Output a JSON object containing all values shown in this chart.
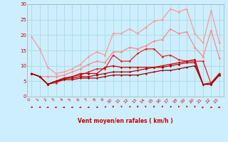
{
  "title": "",
  "xlabel": "Vent moyen/en rafales ( km/h )",
  "xlim": [
    -0.5,
    23.5
  ],
  "ylim": [
    0,
    30
  ],
  "yticks": [
    0,
    5,
    10,
    15,
    20,
    25,
    30
  ],
  "xticks": [
    0,
    1,
    2,
    3,
    4,
    5,
    6,
    7,
    8,
    9,
    10,
    11,
    12,
    13,
    14,
    15,
    16,
    17,
    18,
    19,
    20,
    21,
    22,
    23
  ],
  "bg_color": "#cceeff",
  "grid_color": "#aadddd",
  "lines": [
    {
      "x": [
        0,
        1,
        2,
        3,
        4,
        5,
        6,
        7,
        8,
        9,
        10,
        11,
        12,
        13,
        14,
        15,
        16,
        17,
        18,
        19,
        20,
        21,
        22,
        23
      ],
      "y": [
        19.5,
        15.5,
        9.5,
        7.5,
        8.0,
        9.0,
        10.5,
        13.0,
        14.5,
        13.5,
        20.5,
        20.5,
        22.0,
        20.5,
        22.5,
        24.5,
        25.0,
        28.5,
        27.5,
        28.5,
        20.5,
        17.5,
        28.0,
        17.5
      ],
      "color": "#ff9999",
      "lw": 0.9,
      "marker": "D",
      "ms": 1.8
    },
    {
      "x": [
        0,
        1,
        2,
        3,
        4,
        5,
        6,
        7,
        8,
        9,
        10,
        11,
        12,
        13,
        14,
        15,
        16,
        17,
        18,
        19,
        20,
        21,
        22,
        23
      ],
      "y": [
        7.5,
        6.5,
        6.5,
        6.5,
        7.0,
        8.0,
        9.0,
        10.5,
        11.5,
        11.0,
        14.5,
        14.5,
        16.0,
        15.5,
        16.5,
        18.0,
        18.5,
        22.0,
        20.5,
        21.0,
        16.0,
        13.0,
        21.5,
        12.5
      ],
      "color": "#ff8888",
      "lw": 0.9,
      "marker": "D",
      "ms": 1.8
    },
    {
      "x": [
        0,
        1,
        2,
        3,
        4,
        5,
        6,
        7,
        8,
        9,
        10,
        11,
        12,
        13,
        14,
        15,
        16,
        17,
        18,
        19,
        20,
        21,
        22,
        23
      ],
      "y": [
        7.5,
        6.5,
        4.0,
        4.5,
        5.5,
        6.5,
        7.0,
        8.0,
        9.0,
        9.0,
        13.5,
        11.5,
        11.5,
        14.0,
        15.5,
        15.5,
        13.0,
        13.5,
        12.0,
        11.5,
        11.5,
        11.5,
        4.0,
        7.5
      ],
      "color": "#ee2222",
      "lw": 0.9,
      "marker": "D",
      "ms": 1.8
    },
    {
      "x": [
        0,
        1,
        2,
        3,
        4,
        5,
        6,
        7,
        8,
        9,
        10,
        11,
        12,
        13,
        14,
        15,
        16,
        17,
        18,
        19,
        20,
        21,
        22,
        23
      ],
      "y": [
        7.5,
        6.5,
        4.0,
        5.0,
        6.0,
        6.5,
        7.5,
        7.5,
        7.5,
        9.5,
        10.0,
        9.5,
        9.5,
        9.5,
        9.5,
        9.5,
        10.0,
        10.5,
        11.0,
        11.5,
        12.0,
        4.0,
        4.5,
        7.5
      ],
      "color": "#cc0000",
      "lw": 0.9,
      "marker": "D",
      "ms": 1.8
    },
    {
      "x": [
        0,
        1,
        2,
        3,
        4,
        5,
        6,
        7,
        8,
        9,
        10,
        11,
        12,
        13,
        14,
        15,
        16,
        17,
        18,
        19,
        20,
        21,
        22,
        23
      ],
      "y": [
        7.5,
        6.5,
        4.0,
        5.0,
        6.0,
        6.0,
        6.5,
        6.5,
        7.0,
        7.5,
        8.0,
        8.0,
        8.0,
        8.5,
        9.0,
        9.5,
        9.5,
        10.0,
        10.5,
        11.0,
        11.0,
        4.0,
        4.0,
        7.0
      ],
      "color": "#bb0000",
      "lw": 0.9,
      "marker": "D",
      "ms": 1.8
    },
    {
      "x": [
        0,
        1,
        2,
        3,
        4,
        5,
        6,
        7,
        8,
        9,
        10,
        11,
        12,
        13,
        14,
        15,
        16,
        17,
        18,
        19,
        20,
        21,
        22,
        23
      ],
      "y": [
        7.5,
        6.5,
        4.0,
        5.0,
        5.5,
        5.5,
        6.0,
        6.0,
        6.0,
        6.5,
        7.0,
        7.0,
        7.0,
        7.0,
        7.5,
        8.0,
        8.5,
        8.5,
        9.0,
        9.5,
        10.0,
        4.0,
        4.0,
        7.0
      ],
      "color": "#990000",
      "lw": 0.9,
      "marker": "D",
      "ms": 1.5
    }
  ],
  "arrow_color": "#cc0000",
  "arrow_dirs": [
    225,
    225,
    250,
    260,
    270,
    265,
    255,
    260,
    225,
    200,
    180,
    185,
    195,
    180,
    175,
    180,
    185,
    195,
    190,
    185,
    180,
    45,
    85,
    270
  ]
}
